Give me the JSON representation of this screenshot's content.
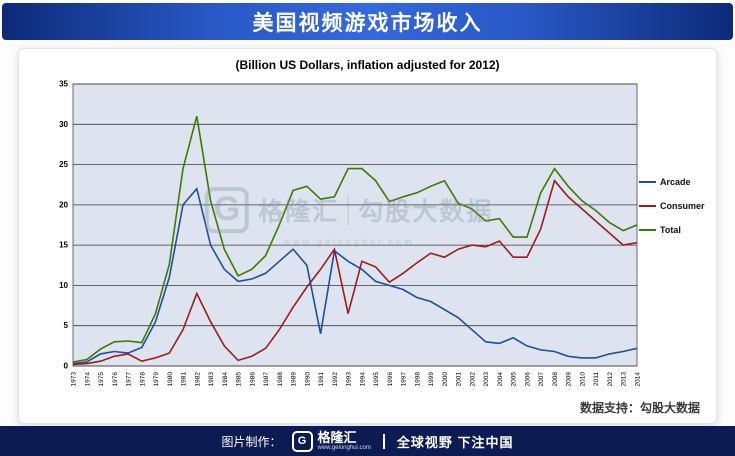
{
  "banner": {
    "title": "美国视频游戏市场收入"
  },
  "chart_data": {
    "type": "line",
    "title": "(Billion US Dollars, inflation adjusted for 2012)",
    "grid": "horizontal",
    "legend_position": "right",
    "ylim": [
      0,
      35
    ],
    "yticks": [
      0,
      5,
      10,
      15,
      20,
      25,
      30,
      35
    ],
    "x": [
      "1973",
      "1974",
      "1975",
      "1976",
      "1977",
      "1978",
      "1979",
      "1980",
      "1981",
      "1982",
      "1983",
      "1984",
      "1985",
      "1986",
      "1987",
      "1988",
      "1989",
      "1990",
      "1991",
      "1992",
      "1993",
      "1994",
      "1995",
      "1996",
      "1997",
      "1998",
      "1999",
      "2000",
      "2001",
      "2002",
      "2003",
      "2004",
      "2005",
      "2006",
      "2007",
      "2008",
      "2009",
      "2010",
      "2011",
      "2012",
      "2013",
      "2014"
    ],
    "series": [
      {
        "name": "Arcade",
        "color": "#1f4e9e",
        "values": [
          0.3,
          0.5,
          1.5,
          1.8,
          1.6,
          2.3,
          5.5,
          11,
          20,
          22,
          15,
          12,
          10.5,
          10.8,
          11.5,
          13,
          14.5,
          12.5,
          4,
          14.3,
          13,
          12,
          10.5,
          10,
          9.5,
          8.5,
          8,
          7,
          6,
          4.5,
          3,
          2.8,
          3.5,
          2.5,
          2,
          1.8,
          1.2,
          1,
          1,
          1.5,
          1.8,
          2.2
        ]
      },
      {
        "name": "Consumer",
        "color": "#9e1b1b",
        "values": [
          0.2,
          0.3,
          0.6,
          1.2,
          1.5,
          0.6,
          1,
          1.6,
          4.5,
          9,
          5.5,
          2.5,
          0.7,
          1.2,
          2.2,
          4.5,
          7.3,
          9.8,
          12,
          14.5,
          6.5,
          13,
          12.3,
          10.4,
          11.5,
          12.8,
          14,
          13.5,
          14.5,
          15,
          14.8,
          15.5,
          13.5,
          13.5,
          17,
          23,
          21,
          19.5,
          18,
          16.5,
          15,
          15.3
        ]
      },
      {
        "name": "Total",
        "color": "#3f7a00",
        "values": [
          0.5,
          0.8,
          2.1,
          3,
          3.1,
          2.9,
          6.5,
          12.6,
          24.5,
          31,
          20.5,
          14.5,
          11.2,
          12,
          13.7,
          17.5,
          21.8,
          22.3,
          20.7,
          21,
          24.5,
          24.5,
          23,
          20.4,
          21,
          21.5,
          22.3,
          23,
          20.2,
          19.5,
          18,
          18.3,
          16,
          16,
          21.5,
          24.5,
          22.3,
          20.5,
          19.3,
          17.8,
          16.8,
          17.5
        ]
      }
    ]
  },
  "watermark": {
    "logo_letter": "G",
    "brand": "格隆汇",
    "divider": "|",
    "name": "勾股大数据",
    "url": "www.gelonghui.com"
  },
  "credit": {
    "label": "数据支持：勾股大数据"
  },
  "footer": {
    "made_by": "图片制作：",
    "logo_letter": "G",
    "brand": "格隆汇",
    "brand_url": "www.gelonghui.com",
    "divider": "|",
    "slogan": "全球视野 下注中国"
  }
}
